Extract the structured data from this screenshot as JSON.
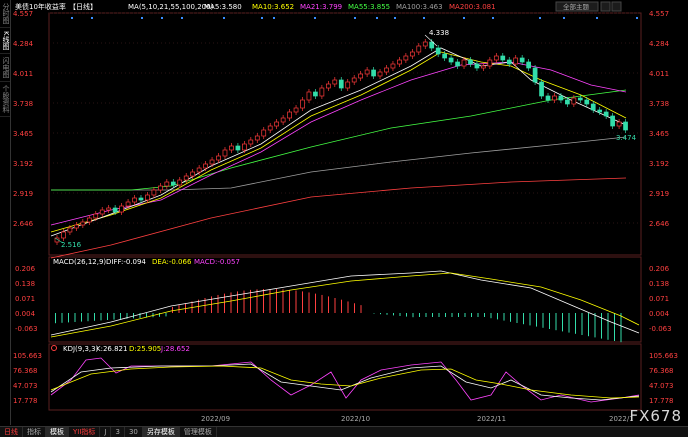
{
  "sidebar": {
    "tabs": [
      "分时图",
      "K线图",
      "闪电图",
      "个股资料"
    ],
    "active": 1
  },
  "header": {
    "title": "美债10年收益率",
    "period": "【日线】",
    "ma_label": "MA(5,10,21,55,100,200)",
    "items": [
      {
        "label": "MA5:3.580",
        "color": "#ffffff"
      },
      {
        "label": "MA10:3.652",
        "color": "#ffff00"
      },
      {
        "label": "MA21:3.799",
        "color": "#ff44ff"
      },
      {
        "label": "MA55:3.855",
        "color": "#44ff44"
      },
      {
        "label": "MA100:3.463",
        "color": "#a0a0a0"
      },
      {
        "label": "MA200:3.081",
        "color": "#ff4040"
      }
    ],
    "right_button": "全部主题"
  },
  "price_axis": [
    "4.557",
    "4.284",
    "4.011",
    "3.738",
    "3.465",
    "3.192",
    "2.919",
    "2.646"
  ],
  "annotations": {
    "high": "4.338",
    "low": "2.516",
    "last": "3.474"
  },
  "macd": {
    "label": "MACD(26,12,9)",
    "diff": "DIFF:-0.094",
    "dea": "DEA:-0.066",
    "macd": "MACD:-0.057",
    "axis": [
      "0.206",
      "0.138",
      "0.071",
      "0.004",
      "-0.063"
    ]
  },
  "kdj": {
    "label": "KDJ(9,3,3)",
    "k": "K:26.821",
    "d": "D:25.905",
    "j": "J:28.652",
    "axis": [
      "105.663",
      "76.368",
      "47.073",
      "17.778"
    ]
  },
  "dates": [
    "2022/09",
    "2022/10",
    "2022/11",
    "2022/1"
  ],
  "bottom_tabs": [
    "日线",
    "指标",
    "模板",
    "YII指标",
    "J",
    "3",
    "30",
    "另存模板",
    "管理模板"
  ],
  "watermark": "FX678",
  "colors": {
    "up": "#ff3b3b",
    "down": "#33ddaa",
    "axis_text": "#ff4040",
    "grid": "#3a2a2a"
  }
}
